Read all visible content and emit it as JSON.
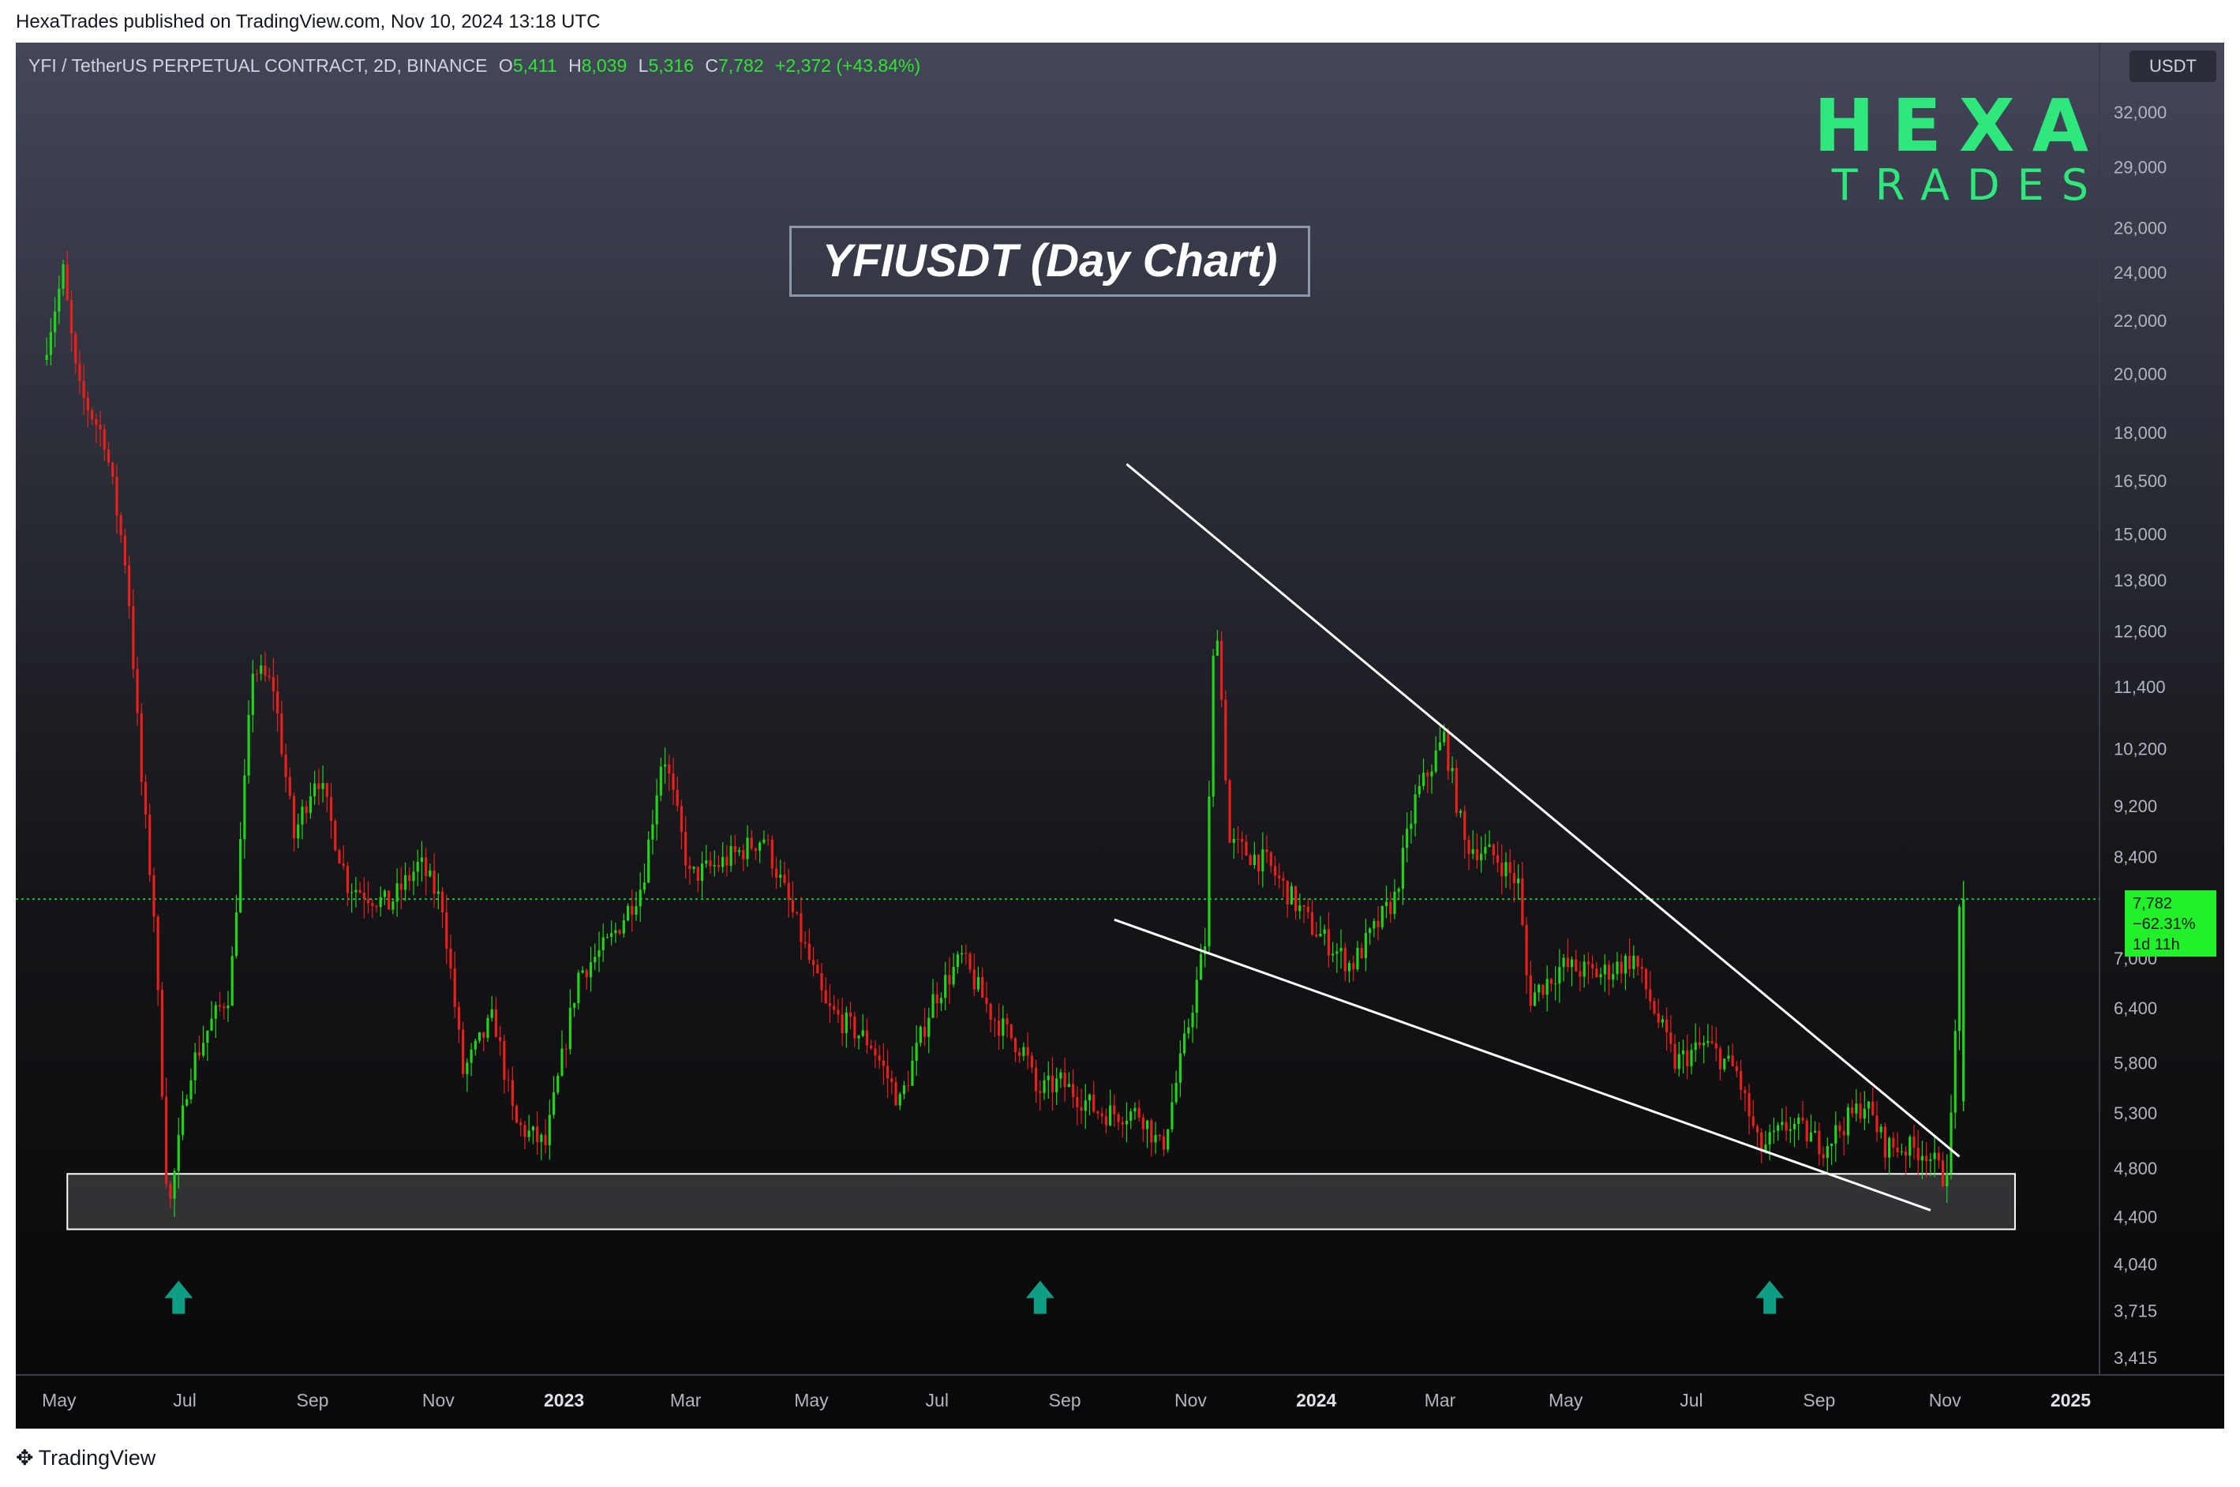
{
  "published_line": "HexaTrades published on TradingView.com, Nov 10, 2024 13:18 UTC",
  "symbol": {
    "name": "YFI / TetherUS PERPETUAL CONTRACT, 2D, BINANCE",
    "open_label": "O",
    "open": "5,411",
    "high_label": "H",
    "high": "8,039",
    "low_label": "L",
    "low": "5,316",
    "close_label": "C",
    "close": "7,782",
    "change": "+2,372 (+43.84%)"
  },
  "logo": {
    "line1": "HEXA",
    "line2": "TRADES"
  },
  "currency": "USDT",
  "price_badge": {
    "price": "7,782",
    "pct": "−62.31%",
    "time": "1d 11h"
  },
  "footer_brand": "TradingView",
  "colors": {
    "up": "#22d31c",
    "down": "#e8201c",
    "accent": "#2ee87c",
    "arrow": "#0f9d83"
  },
  "chart_data": {
    "type": "candlestick",
    "title": "YFIUSDT (Day Chart)",
    "y_scale": "log",
    "ylim": [
      3300,
      34000
    ],
    "y_ticks": [
      32000,
      29000,
      26000,
      24000,
      22000,
      20000,
      18000,
      16500,
      15000,
      13800,
      12600,
      11400,
      10200,
      9200,
      8400,
      7000,
      6400,
      5800,
      5300,
      4800,
      4400,
      4040,
      3715,
      3415
    ],
    "y_tick_labels": [
      "32,000",
      "29,000",
      "26,000",
      "24,000",
      "22,000",
      "20,000",
      "18,000",
      "16,500",
      "15,000",
      "13,800",
      "12,600",
      "11,400",
      "10,200",
      "9,200",
      "8,400",
      "7,000",
      "6,400",
      "5,800",
      "5,300",
      "4,800",
      "4,400",
      "4,040",
      "3,715",
      "3,415"
    ],
    "x_ticks": [
      "May",
      "Jul",
      "Sep",
      "Nov",
      "2023",
      "Mar",
      "May",
      "Jul",
      "Sep",
      "Nov",
      "2024",
      "Mar",
      "May",
      "Jul",
      "Sep",
      "Nov",
      "2025"
    ],
    "price_path": [
      [
        "2022-04-25",
        20500
      ],
      [
        "2022-05-05",
        24000
      ],
      [
        "2022-05-12",
        19500
      ],
      [
        "2022-05-25",
        17800
      ],
      [
        "2022-06-05",
        14000
      ],
      [
        "2022-06-12",
        9600
      ],
      [
        "2022-06-18",
        7600
      ],
      [
        "2022-06-25",
        4400
      ],
      [
        "2022-07-05",
        5700
      ],
      [
        "2022-07-15",
        6200
      ],
      [
        "2022-07-25",
        6600
      ],
      [
        "2022-08-05",
        11800
      ],
      [
        "2022-08-15",
        11400
      ],
      [
        "2022-08-25",
        8700
      ],
      [
        "2022-09-05",
        9800
      ],
      [
        "2022-09-20",
        8000
      ],
      [
        "2022-10-10",
        7700
      ],
      [
        "2022-10-25",
        8300
      ],
      [
        "2022-11-05",
        7700
      ],
      [
        "2022-11-15",
        5700
      ],
      [
        "2022-11-30",
        6300
      ],
      [
        "2022-12-10",
        5200
      ],
      [
        "2022-12-25",
        5000
      ],
      [
        "2023-01-10",
        6800
      ],
      [
        "2023-01-25",
        7200
      ],
      [
        "2023-02-10",
        8000
      ],
      [
        "2023-02-20",
        10200
      ],
      [
        "2023-03-05",
        8100
      ],
      [
        "2023-03-20",
        8300
      ],
      [
        "2023-04-10",
        8700
      ],
      [
        "2023-04-25",
        7500
      ],
      [
        "2023-05-10",
        6400
      ],
      [
        "2023-06-01",
        6000
      ],
      [
        "2023-06-15",
        5400
      ],
      [
        "2023-07-01",
        6500
      ],
      [
        "2023-07-15",
        7000
      ],
      [
        "2023-07-30",
        6300
      ],
      [
        "2023-08-15",
        5900
      ],
      [
        "2023-08-20",
        5500
      ],
      [
        "2023-09-01",
        5600
      ],
      [
        "2023-09-20",
        5300
      ],
      [
        "2023-10-10",
        5300
      ],
      [
        "2023-10-20",
        4950
      ],
      [
        "2023-11-01",
        6100
      ],
      [
        "2023-11-10",
        7200
      ],
      [
        "2023-11-15",
        13500
      ],
      [
        "2023-11-22",
        8600
      ],
      [
        "2023-12-10",
        8300
      ],
      [
        "2024-01-01",
        7400
      ],
      [
        "2024-01-20",
        6900
      ],
      [
        "2024-02-10",
        7800
      ],
      [
        "2024-02-20",
        9300
      ],
      [
        "2024-03-05",
        10400
      ],
      [
        "2024-03-15",
        8600
      ],
      [
        "2024-03-30",
        8400
      ],
      [
        "2024-04-10",
        8000
      ],
      [
        "2024-04-15",
        6500
      ],
      [
        "2024-05-01",
        6900
      ],
      [
        "2024-05-20",
        6800
      ],
      [
        "2024-06-05",
        7000
      ],
      [
        "2024-06-25",
        5800
      ],
      [
        "2024-07-10",
        6000
      ],
      [
        "2024-07-25",
        5700
      ],
      [
        "2024-08-05",
        4950
      ],
      [
        "2024-08-20",
        5200
      ],
      [
        "2024-09-05",
        5000
      ],
      [
        "2024-09-25",
        5400
      ],
      [
        "2024-10-05",
        5000
      ],
      [
        "2024-10-25",
        4950
      ],
      [
        "2024-11-03",
        4700
      ],
      [
        "2024-11-07",
        5400
      ],
      [
        "2024-11-10",
        7782
      ]
    ],
    "current_price": 7782,
    "last_candle": {
      "open": 5411,
      "high": 8039,
      "low": 5316,
      "close": 7782
    },
    "support_zone": {
      "x_start": "2022-05-05",
      "x_end": "2024-12-05",
      "y_low": 4300,
      "y_high": 4750
    },
    "trendlines": [
      {
        "name": "upper",
        "points": [
          [
            "2023-10-01",
            17000
          ],
          [
            "2024-11-08",
            4900
          ]
        ]
      },
      {
        "name": "lower",
        "points": [
          [
            "2023-09-25",
            7500
          ],
          [
            "2024-10-25",
            4450
          ]
        ]
      }
    ],
    "arrows": [
      "2022-06-28",
      "2023-08-20",
      "2024-08-08"
    ],
    "legend": "none",
    "grid": false
  }
}
